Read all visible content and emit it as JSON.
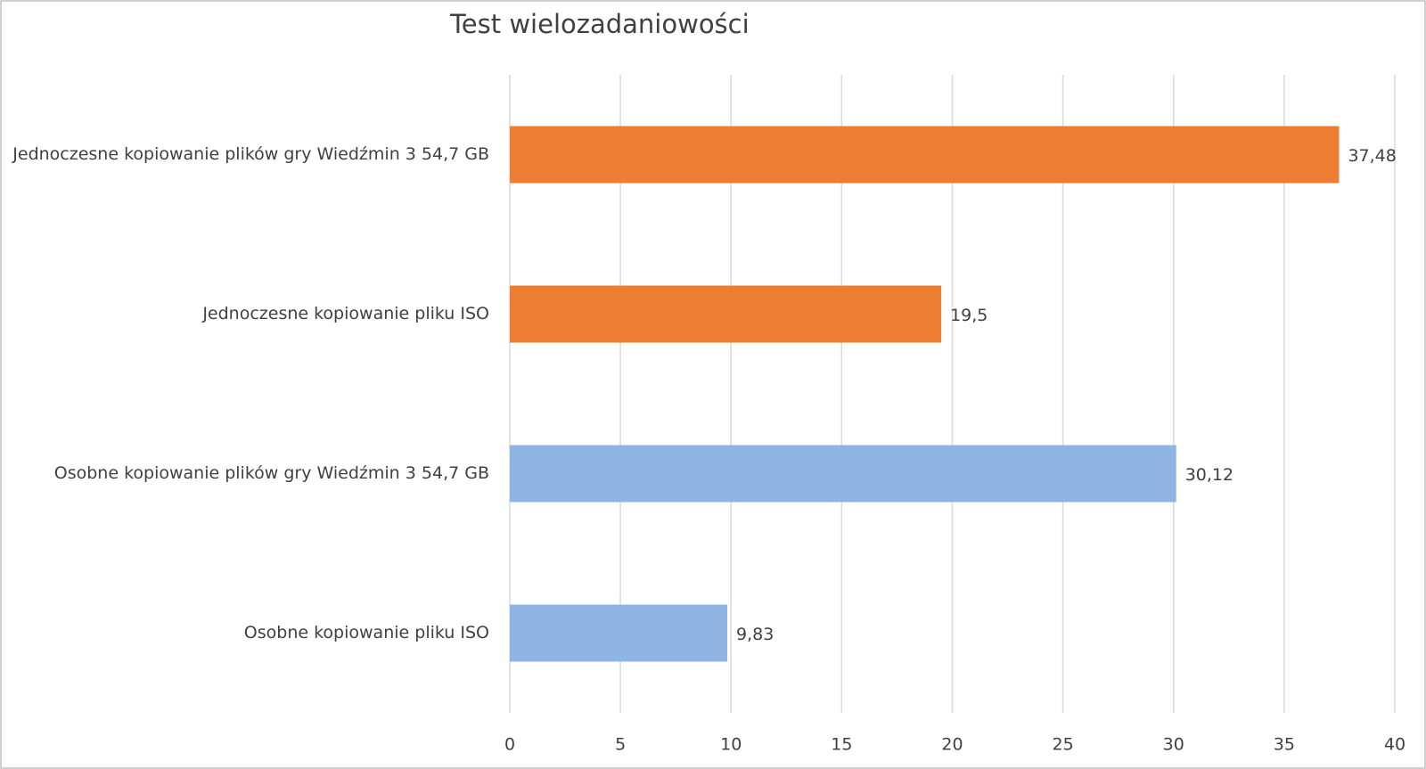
{
  "chart_data": {
    "type": "bar",
    "orientation": "horizontal",
    "title": "Test wielozadaniowości",
    "categories": [
      "Jednoczesne kopiowanie plików gry Wiedźmin 3 54,7 GB",
      "Jednoczesne kopiowanie pliku ISO",
      "Osobne kopiowanie plików gry Wiedźmin 3 54,7 GB",
      "Osobne kopiowanie pliku ISO"
    ],
    "values": [
      37.48,
      19.5,
      30.12,
      9.83
    ],
    "value_labels": [
      "37,48",
      "19,5",
      "30,12",
      "9,83"
    ],
    "colors": [
      "#ed7d31",
      "#ed7d31",
      "#8eb4e3",
      "#8eb4e3"
    ],
    "xlim": [
      0,
      40
    ],
    "xticks": [
      0,
      5,
      10,
      15,
      20,
      25,
      30,
      35,
      40
    ],
    "grid": true
  }
}
